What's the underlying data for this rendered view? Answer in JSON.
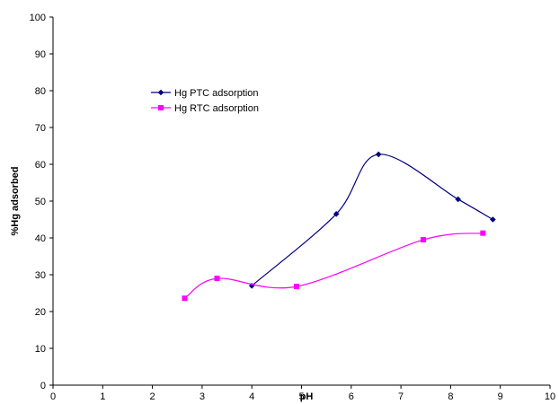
{
  "chart_data": {
    "type": "line",
    "title": "",
    "xlabel": "pH",
    "ylabel": "%Hg adsorbed",
    "xlim": [
      0,
      10
    ],
    "ylim": [
      0,
      100
    ],
    "x_ticks": [
      "0",
      "1",
      "2",
      "3",
      "4",
      "5",
      "6",
      "7",
      "8",
      "9",
      "10"
    ],
    "y_ticks": [
      "0",
      "10",
      "20",
      "30",
      "40",
      "50",
      "60",
      "70",
      "80",
      "90",
      "100"
    ],
    "grid": false,
    "legend_position": "upper-left",
    "series": [
      {
        "name": "Hg PTC adsorption",
        "color": "#000080",
        "marker": "diamond",
        "x": [
          4.0,
          5.7,
          6.55,
          8.15,
          8.85
        ],
        "y": [
          27.0,
          46.5,
          62.7,
          50.5,
          45.0
        ]
      },
      {
        "name": "Hg RTC adsorption",
        "color": "#ff00ff",
        "marker": "square",
        "x": [
          2.65,
          3.3,
          4.9,
          7.45,
          8.65
        ],
        "y": [
          23.6,
          29.0,
          26.8,
          39.5,
          41.3
        ]
      }
    ]
  }
}
